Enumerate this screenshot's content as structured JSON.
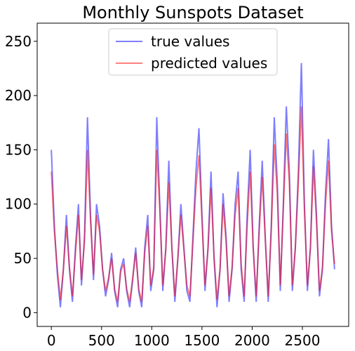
{
  "chart_data": {
    "type": "line",
    "title": "Monthly Sunspots Dataset",
    "x": [
      0,
      30,
      60,
      90,
      120,
      150,
      180,
      210,
      240,
      270,
      300,
      330,
      360,
      390,
      420,
      450,
      480,
      510,
      540,
      570,
      600,
      630,
      660,
      690,
      720,
      750,
      780,
      810,
      840,
      870,
      900,
      930,
      960,
      990,
      1020,
      1050,
      1080,
      1110,
      1140,
      1170,
      1200,
      1230,
      1260,
      1290,
      1320,
      1350,
      1380,
      1410,
      1440,
      1470,
      1500,
      1530,
      1560,
      1590,
      1620,
      1650,
      1680,
      1710,
      1740,
      1770,
      1800,
      1830,
      1860,
      1890,
      1920,
      1950,
      1980,
      2010,
      2040,
      2070,
      2100,
      2130,
      2160,
      2190,
      2220,
      2250,
      2280,
      2310,
      2340,
      2370,
      2400,
      2430,
      2460,
      2490,
      2520,
      2550,
      2580,
      2610,
      2640,
      2670,
      2700,
      2730,
      2760,
      2790,
      2820
    ],
    "series": [
      {
        "name": "true values",
        "color": "#0000ff",
        "values": [
          150,
          80,
          35,
          5,
          40,
          90,
          40,
          10,
          60,
          100,
          25,
          70,
          180,
          90,
          30,
          100,
          80,
          40,
          15,
          30,
          55,
          20,
          5,
          40,
          50,
          20,
          5,
          30,
          60,
          20,
          5,
          60,
          90,
          20,
          40,
          180,
          100,
          20,
          60,
          140,
          60,
          10,
          50,
          100,
          60,
          20,
          10,
          70,
          130,
          170,
          90,
          20,
          60,
          130,
          50,
          5,
          40,
          110,
          70,
          10,
          40,
          100,
          130,
          40,
          10,
          90,
          150,
          60,
          10,
          80,
          140,
          70,
          10,
          80,
          180,
          120,
          20,
          100,
          190,
          130,
          20,
          60,
          130,
          230,
          100,
          20,
          60,
          150,
          90,
          15,
          40,
          110,
          160,
          80,
          40
        ]
      },
      {
        "name": "predicted values",
        "color": "#ff0000",
        "values": [
          130,
          75,
          40,
          12,
          40,
          80,
          42,
          15,
          55,
          90,
          30,
          65,
          150,
          85,
          35,
          90,
          75,
          40,
          20,
          32,
          50,
          22,
          10,
          38,
          45,
          22,
          10,
          32,
          55,
          22,
          10,
          55,
          80,
          25,
          42,
          150,
          95,
          25,
          58,
          120,
          60,
          15,
          50,
          90,
          58,
          25,
          15,
          65,
          115,
          145,
          85,
          25,
          58,
          115,
          52,
          12,
          40,
          100,
          65,
          15,
          42,
          90,
          115,
          45,
          15,
          80,
          130,
          60,
          15,
          75,
          125,
          68,
          15,
          75,
          155,
          110,
          25,
          95,
          165,
          120,
          25,
          60,
          120,
          190,
          95,
          25,
          60,
          135,
          85,
          20,
          42,
          100,
          140,
          75,
          45
        ]
      }
    ],
    "xlim": [
      -141,
      2961
    ],
    "ylim": [
      -12.7,
      266.7
    ],
    "xticks": [
      0,
      500,
      1000,
      1500,
      2000,
      2500
    ],
    "yticks": [
      0,
      50,
      100,
      150,
      200,
      250
    ],
    "legend": "upper center",
    "opacity": 0.5
  }
}
